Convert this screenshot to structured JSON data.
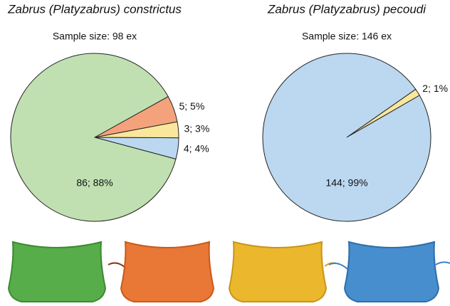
{
  "chart_data": [
    {
      "type": "pie",
      "title": "Zabrus (Platyzabrus) constrictus",
      "subtitle": "Sample size: 98 ex",
      "categories": [
        null,
        null,
        null,
        null
      ],
      "values": [
        86,
        5,
        3,
        4
      ],
      "value_labels": [
        "86; 88%",
        "5; 5%",
        "3; 3%",
        "4; 4%"
      ],
      "colors": [
        "#c0e0b2",
        "#f4a27c",
        "#fbe79c",
        "#bcd8f0"
      ]
    },
    {
      "type": "pie",
      "title": "Zabrus (Platyzabrus) pecoudi",
      "subtitle": "Sample size: 146 ex",
      "categories": [
        null,
        null
      ],
      "values": [
        144,
        2
      ],
      "value_labels": [
        "144; 99%",
        "2; 1%"
      ],
      "colors": [
        "#bcd8f0",
        "#fbe79c"
      ]
    }
  ]
}
